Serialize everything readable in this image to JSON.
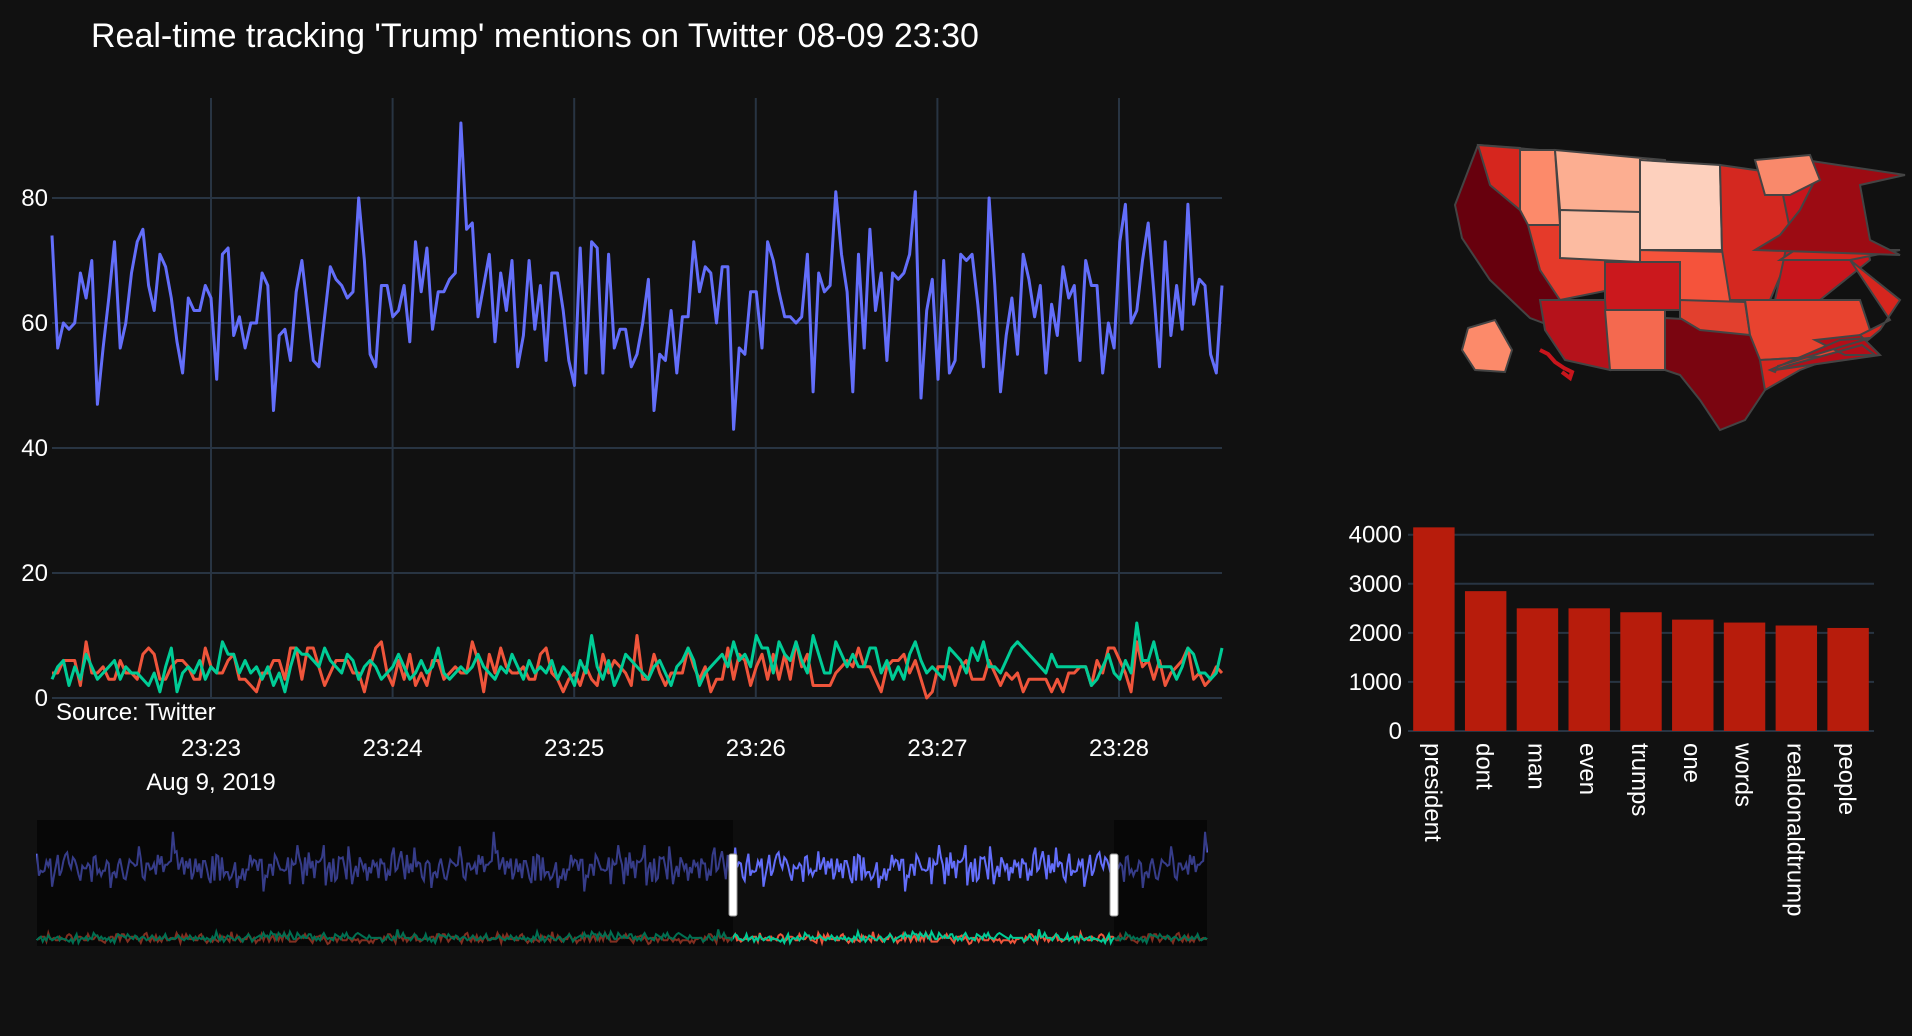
{
  "title": "Real-time tracking 'Trump' mentions on Twitter 08-09 23:30",
  "source_note": "Source: Twitter",
  "date_label": "Aug 9, 2019",
  "colors": {
    "background": "#111111",
    "grid": "#283442",
    "series_total": "#636efa",
    "series_red": "#ef553b",
    "series_green": "#00cc96",
    "bar": "#b71c0c"
  },
  "chart_data": [
    {
      "type": "line",
      "ylim": [
        0,
        96
      ],
      "y_ticks": [
        0,
        20,
        40,
        60,
        80
      ],
      "x_ticks": [
        "23:23",
        "23:24",
        "23:25",
        "23:26",
        "23:27",
        "23:28"
      ],
      "grid": true,
      "series": [
        {
          "color": "#636efa",
          "values": [
            74,
            56,
            60,
            59,
            60,
            68,
            64,
            70,
            47,
            56,
            64,
            73,
            56,
            60,
            68,
            73,
            75,
            66,
            62,
            71,
            69,
            64,
            57,
            52,
            64,
            62,
            62,
            66,
            64,
            51,
            71,
            72,
            58,
            61,
            56,
            60,
            60,
            68,
            66,
            46,
            58,
            59,
            54,
            65,
            70,
            62,
            54,
            53,
            61,
            69,
            67,
            66,
            64,
            65,
            80,
            70,
            55,
            53,
            66,
            66,
            61,
            62,
            66,
            57,
            73,
            65,
            72,
            59,
            65,
            65,
            67,
            68,
            92,
            75,
            76,
            61,
            66,
            71,
            57,
            68,
            62,
            70,
            53,
            58,
            70,
            59,
            66,
            54,
            68,
            68,
            62,
            54,
            50,
            72,
            52,
            73,
            72,
            52,
            71,
            56,
            59,
            59,
            53,
            55,
            60,
            67,
            46,
            55,
            54,
            62,
            52,
            61,
            61,
            73,
            65,
            69,
            68,
            60,
            69,
            69,
            43,
            56,
            55,
            65,
            65,
            56,
            73,
            70,
            65,
            61,
            61,
            60,
            61,
            71,
            49,
            68,
            65,
            66,
            81,
            71,
            65,
            49,
            71,
            56,
            75,
            62,
            68,
            54,
            68,
            67,
            68,
            71,
            81,
            48,
            62,
            67,
            51,
            70,
            52,
            54,
            71,
            70,
            71,
            63,
            53,
            80,
            66,
            49,
            58,
            64,
            55,
            71,
            67,
            61,
            66,
            52,
            63,
            58,
            69,
            64,
            66,
            54,
            70,
            66,
            66,
            52,
            60,
            56,
            73,
            79,
            60,
            62,
            70,
            76,
            65,
            53,
            73,
            58,
            66,
            59,
            79,
            63,
            67,
            66,
            55,
            52,
            66
          ]
        },
        {
          "color": "#ef553b",
          "values": [
            4,
            4,
            6,
            6,
            6,
            2,
            9,
            4,
            4,
            5,
            3,
            3,
            6,
            4,
            4,
            3,
            7,
            8,
            7,
            3,
            3,
            5,
            6,
            6,
            5,
            3,
            3,
            8,
            5,
            4,
            4,
            6,
            7,
            3,
            3,
            2,
            1,
            4,
            4,
            6,
            6,
            3,
            8,
            8,
            3,
            8,
            8,
            5,
            2,
            4,
            6,
            6,
            6,
            4,
            4,
            1,
            5,
            8,
            9,
            4,
            2,
            6,
            3,
            7,
            2,
            4,
            2,
            6,
            6,
            3,
            4,
            5,
            4,
            4,
            9,
            6,
            1,
            7,
            4,
            8,
            5,
            4,
            4,
            5,
            3,
            3,
            7,
            8,
            4,
            3,
            1,
            3,
            4,
            2,
            5,
            3,
            2,
            7,
            4,
            6,
            5,
            4,
            2,
            10,
            3,
            3,
            7,
            4,
            2,
            4,
            4,
            4,
            8,
            5,
            3,
            5,
            1,
            3,
            3,
            8,
            3,
            7,
            6,
            2,
            5,
            7,
            3,
            7,
            3,
            7,
            3,
            9,
            5,
            7,
            2,
            2,
            2,
            2,
            4,
            5,
            6,
            5,
            8,
            5,
            5,
            3,
            1,
            5,
            6,
            6,
            7,
            4,
            6,
            3,
            0,
            1,
            5,
            5,
            5,
            2,
            5,
            6,
            3,
            3,
            3,
            6,
            4,
            2,
            4,
            3,
            4,
            1,
            3,
            3,
            3,
            3,
            1,
            3,
            1,
            4,
            4,
            5,
            5,
            2,
            6,
            4,
            8,
            8,
            6,
            4,
            1,
            9,
            5,
            6,
            3,
            6,
            2,
            4,
            5,
            6,
            8,
            3,
            4,
            2,
            3,
            5,
            4
          ]
        },
        {
          "color": "#00cc96",
          "values": [
            3,
            5,
            6,
            2,
            5,
            3,
            7,
            5,
            3,
            4,
            5,
            6,
            3,
            5,
            4,
            4,
            3,
            2,
            4,
            1,
            5,
            8,
            1,
            4,
            5,
            4,
            6,
            3,
            5,
            4,
            9,
            7,
            7,
            4,
            6,
            4,
            5,
            3,
            5,
            2,
            4,
            1,
            5,
            8,
            7,
            7,
            6,
            5,
            8,
            6,
            5,
            4,
            7,
            6,
            3,
            5,
            6,
            5,
            3,
            4,
            5,
            7,
            5,
            3,
            4,
            6,
            4,
            5,
            8,
            4,
            3,
            4,
            5,
            4,
            5,
            7,
            5,
            4,
            3,
            5,
            4,
            7,
            5,
            3,
            6,
            4,
            5,
            4,
            6,
            3,
            5,
            4,
            2,
            6,
            4,
            10,
            5,
            3,
            6,
            2,
            4,
            7,
            6,
            5,
            4,
            3,
            5,
            6,
            4,
            2,
            5,
            6,
            8,
            6,
            2,
            4,
            5,
            6,
            7,
            5,
            9,
            6,
            7,
            5,
            10,
            8,
            8,
            4,
            9,
            7,
            6,
            9,
            6,
            4,
            10,
            7,
            4,
            4,
            9,
            7,
            5,
            7,
            5,
            5,
            8,
            8,
            4,
            6,
            3,
            5,
            3,
            7,
            9,
            6,
            4,
            5,
            4,
            3,
            8,
            7,
            6,
            4,
            8,
            6,
            9,
            5,
            5,
            4,
            6,
            8,
            9,
            8,
            7,
            6,
            5,
            4,
            7,
            5,
            5,
            5,
            5,
            5,
            5,
            2,
            3,
            5,
            7,
            4,
            3,
            6,
            4,
            12,
            6,
            6,
            9,
            5,
            5,
            5,
            3,
            5,
            8,
            7,
            4,
            4,
            3,
            4,
            8
          ]
        }
      ]
    },
    {
      "type": "bar",
      "categories": [
        "president",
        "dont",
        "man",
        "even",
        "trumps",
        "one",
        "words",
        "realdonaldtrump",
        "people"
      ],
      "values": [
        4150,
        2850,
        2500,
        2500,
        2420,
        2270,
        2210,
        2150,
        2100
      ],
      "ylim": [
        0,
        4300
      ],
      "y_ticks": [
        "0",
        "1000",
        "2000",
        "3000",
        "4000"
      ],
      "grid": true
    }
  ],
  "map": {
    "type": "choropleth",
    "colorscale": [
      "#fee0d2",
      "#fc9272",
      "#ef3b2c",
      "#a50f15",
      "#67000d"
    ]
  }
}
